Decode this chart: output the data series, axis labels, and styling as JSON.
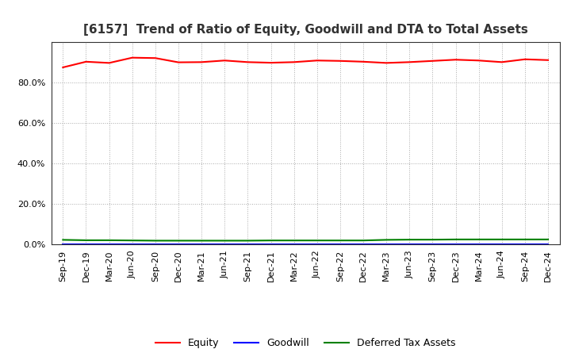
{
  "title": "[6157]  Trend of Ratio of Equity, Goodwill and DTA to Total Assets",
  "x_labels": [
    "Sep-19",
    "Dec-19",
    "Mar-20",
    "Jun-20",
    "Sep-20",
    "Dec-20",
    "Mar-21",
    "Jun-21",
    "Sep-21",
    "Dec-21",
    "Mar-22",
    "Jun-22",
    "Sep-22",
    "Dec-22",
    "Mar-23",
    "Jun-23",
    "Sep-23",
    "Dec-23",
    "Mar-24",
    "Jun-24",
    "Sep-24",
    "Dec-24"
  ],
  "equity": [
    0.874,
    0.902,
    0.896,
    0.922,
    0.92,
    0.899,
    0.9,
    0.908,
    0.9,
    0.897,
    0.9,
    0.908,
    0.906,
    0.902,
    0.896,
    0.9,
    0.906,
    0.912,
    0.908,
    0.9,
    0.914,
    0.91
  ],
  "goodwill": [
    0.0,
    0.0,
    0.0,
    0.0,
    0.0,
    0.0,
    0.0,
    0.0,
    0.0,
    0.0,
    0.0,
    0.0,
    0.0,
    0.0,
    0.0,
    0.0,
    0.0,
    0.0,
    0.0,
    0.0,
    0.0,
    0.0
  ],
  "dta": [
    0.022,
    0.02,
    0.02,
    0.019,
    0.018,
    0.018,
    0.018,
    0.018,
    0.018,
    0.019,
    0.019,
    0.019,
    0.019,
    0.019,
    0.022,
    0.023,
    0.023,
    0.024,
    0.024,
    0.024,
    0.024,
    0.024
  ],
  "equity_color": "#FF0000",
  "goodwill_color": "#0000FF",
  "dta_color": "#008000",
  "bg_color": "#FFFFFF",
  "plot_bg_color": "#FFFFFF",
  "grid_color": "#AAAAAA",
  "ylim": [
    0.0,
    1.0
  ],
  "yticks": [
    0.0,
    0.2,
    0.4,
    0.6,
    0.8
  ],
  "legend_labels": [
    "Equity",
    "Goodwill",
    "Deferred Tax Assets"
  ],
  "title_fontsize": 11,
  "axis_fontsize": 8,
  "legend_fontsize": 9
}
